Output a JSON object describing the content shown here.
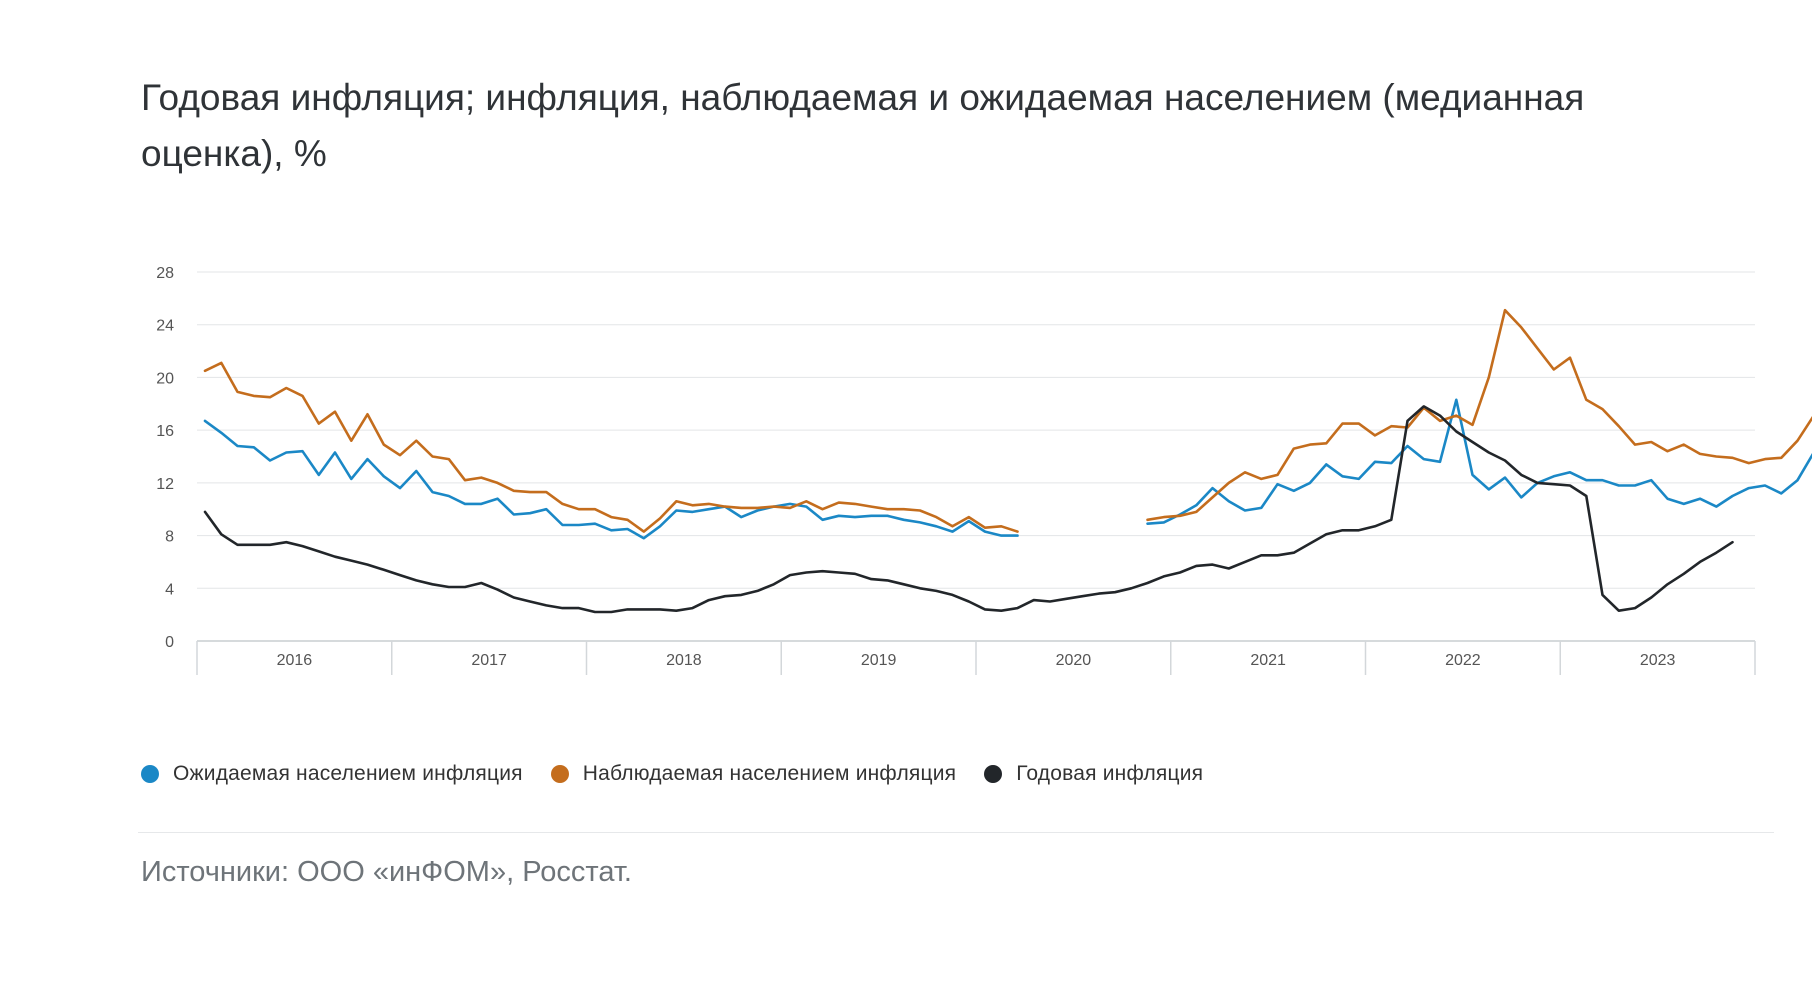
{
  "title": "Годовая инфляция; инфляция, наблюдаемая и ожидаемая населением (медианная оценка), %",
  "source": "Источники: ООО «инФОМ», Росстат.",
  "chart_data": {
    "type": "line",
    "title": "Годовая инфляция; инфляция, наблюдаемая и ожидаемая населением (медианная оценка), %",
    "ylim": [
      0,
      28
    ],
    "yticks": [
      0,
      4,
      8,
      12,
      16,
      20,
      24,
      28
    ],
    "x_start": "2016-01",
    "x_unit": "month",
    "years": [
      "2016",
      "2017",
      "2018",
      "2019",
      "2020",
      "2021",
      "2022",
      "2023"
    ],
    "series": [
      {
        "name": "Ожидаемая населением инфляция",
        "color": "#1b88c6",
        "values": [
          16.7,
          15.8,
          14.8,
          14.7,
          13.7,
          14.3,
          14.4,
          12.6,
          14.3,
          12.3,
          13.8,
          12.5,
          11.6,
          12.9,
          11.3,
          11.0,
          10.4,
          10.4,
          10.8,
          9.6,
          9.7,
          10.0,
          8.8,
          8.8,
          8.9,
          8.4,
          8.5,
          7.8,
          8.7,
          9.9,
          9.8,
          10.0,
          10.2,
          9.4,
          9.9,
          10.2,
          10.4,
          10.2,
          9.2,
          9.5,
          9.4,
          9.5,
          9.5,
          9.2,
          9.0,
          8.7,
          8.3,
          9.1,
          8.3,
          8.0,
          8.0,
          null,
          null,
          null,
          null,
          null,
          null,
          null,
          8.9,
          9.0,
          9.6,
          10.3,
          11.6,
          10.6,
          9.9,
          10.1,
          11.9,
          11.4,
          12.0,
          13.4,
          12.5,
          12.3,
          13.6,
          13.5,
          14.8,
          13.8,
          13.6,
          18.3,
          12.6,
          11.5,
          12.4,
          10.9,
          12.0,
          12.5,
          12.8,
          12.2,
          12.2,
          11.8,
          11.8,
          12.2,
          10.8,
          10.4,
          10.8,
          10.2,
          11.0,
          11.6,
          11.8,
          11.2,
          12.2,
          14.3
        ]
      },
      {
        "name": "Наблюдаемая населением инфляция",
        "color": "#c46d1d",
        "values": [
          20.5,
          21.1,
          18.9,
          18.6,
          18.5,
          19.2,
          18.6,
          16.5,
          17.4,
          15.2,
          17.2,
          14.9,
          14.1,
          15.2,
          14.0,
          13.8,
          12.2,
          12.4,
          12.0,
          11.4,
          11.3,
          11.3,
          10.4,
          10.0,
          10.0,
          9.4,
          9.2,
          8.3,
          9.3,
          10.6,
          10.3,
          10.4,
          10.2,
          10.1,
          10.1,
          10.2,
          10.1,
          10.6,
          10.0,
          10.5,
          10.4,
          10.2,
          10.0,
          10.0,
          9.9,
          9.4,
          8.7,
          9.4,
          8.6,
          8.7,
          8.3,
          null,
          null,
          null,
          null,
          null,
          null,
          null,
          9.2,
          9.4,
          9.5,
          9.8,
          10.9,
          12.0,
          12.8,
          12.3,
          12.6,
          14.6,
          14.9,
          15.0,
          16.5,
          16.5,
          15.6,
          16.3,
          16.2,
          17.7,
          16.7,
          17.1,
          16.4,
          20.0,
          25.1,
          23.8,
          22.2,
          20.6,
          21.5,
          18.3,
          17.6,
          16.3,
          14.9,
          15.1,
          14.4,
          14.9,
          14.2,
          14.0,
          13.9,
          13.5,
          13.8,
          13.9,
          15.2,
          17.1
        ]
      },
      {
        "name": "Годовая инфляция",
        "color": "#22262a",
        "values": [
          9.8,
          8.1,
          7.3,
          7.3,
          7.3,
          7.5,
          7.2,
          6.8,
          6.4,
          6.1,
          5.8,
          5.4,
          5.0,
          4.6,
          4.3,
          4.1,
          4.1,
          4.4,
          3.9,
          3.3,
          3.0,
          2.7,
          2.5,
          2.5,
          2.2,
          2.2,
          2.4,
          2.4,
          2.4,
          2.3,
          2.5,
          3.1,
          3.4,
          3.5,
          3.8,
          4.3,
          5.0,
          5.2,
          5.3,
          5.2,
          5.1,
          4.7,
          4.6,
          4.3,
          4.0,
          3.8,
          3.5,
          3.0,
          2.4,
          2.3,
          2.5,
          3.1,
          3.0,
          3.2,
          3.4,
          3.6,
          3.7,
          4.0,
          4.4,
          4.9,
          5.2,
          5.7,
          5.8,
          5.5,
          6.0,
          6.5,
          6.5,
          6.7,
          7.4,
          8.1,
          8.4,
          8.4,
          8.7,
          9.2,
          16.7,
          17.8,
          17.1,
          15.9,
          15.1,
          14.3,
          13.7,
          12.6,
          12.0,
          11.9,
          11.8,
          11.0,
          3.5,
          2.3,
          2.5,
          3.3,
          4.3,
          5.1,
          6.0,
          6.7,
          7.5
        ]
      }
    ]
  }
}
